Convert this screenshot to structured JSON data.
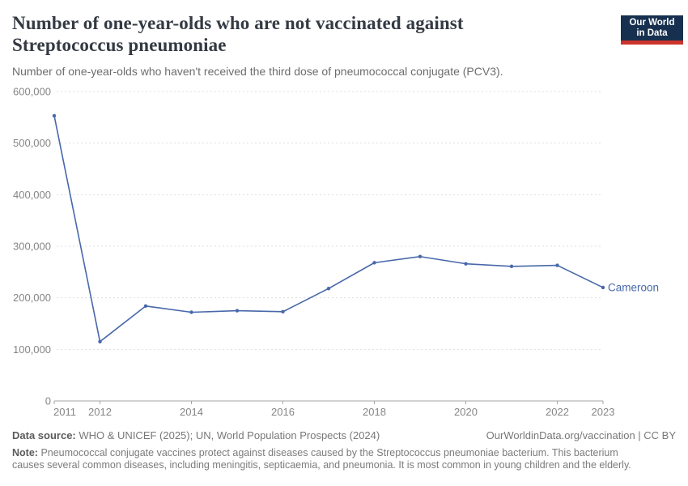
{
  "header": {
    "title": "Number of one-year-olds who are not vaccinated against Streptococcus pneumoniae",
    "subtitle": "Number of one-year-olds who haven't received the third dose of pneumococcal conjugate (PCV3).",
    "logo": {
      "line1": "Our World",
      "line2": "in Data",
      "bg_color": "#17304f",
      "bar_color": "#cc342b"
    }
  },
  "chart_data": {
    "type": "line",
    "title": "Number of one-year-olds who are not vaccinated against Streptococcus pneumoniae",
    "xlabel": "",
    "ylabel": "",
    "x": [
      2011,
      2012,
      2013,
      2014,
      2015,
      2016,
      2017,
      2018,
      2019,
      2020,
      2021,
      2022,
      2023
    ],
    "series": [
      {
        "name": "Cameroon",
        "values": [
          553000,
          115000,
          184000,
          172000,
          175000,
          173000,
          218000,
          268000,
          280000,
          266000,
          261000,
          263000,
          220000
        ]
      }
    ],
    "xlim": [
      2011,
      2023
    ],
    "ylim": [
      0,
      600000
    ],
    "x_ticks": [
      2011,
      2012,
      2014,
      2016,
      2018,
      2020,
      2022,
      2023
    ],
    "y_ticks": [
      0,
      100000,
      200000,
      300000,
      400000,
      500000,
      600000
    ],
    "y_tick_labels": [
      "0",
      "100,000",
      "200,000",
      "300,000",
      "400,000",
      "500,000",
      "600,000"
    ],
    "grid": "horizontal dashed",
    "legend": "label at end of line",
    "colors": {
      "line": "#4868aa",
      "grid": "#dedede",
      "axis": "#a5a5a5",
      "tick_text": "#858585"
    }
  },
  "footer": {
    "data_source_label": "Data source:",
    "data_source_text": "WHO & UNICEF (2025); UN, World Population Prospects (2024)",
    "rights_text": "OurWorldinData.org/vaccination | CC BY",
    "note_label": "Note:",
    "note_text": "Pneumococcal conjugate vaccines protect against diseases caused by the Streptococcus pneumoniae bacterium. This bacterium causes several common diseases, including meningitis, septicaemia, and pneumonia. It is most common in young children and the elderly."
  }
}
